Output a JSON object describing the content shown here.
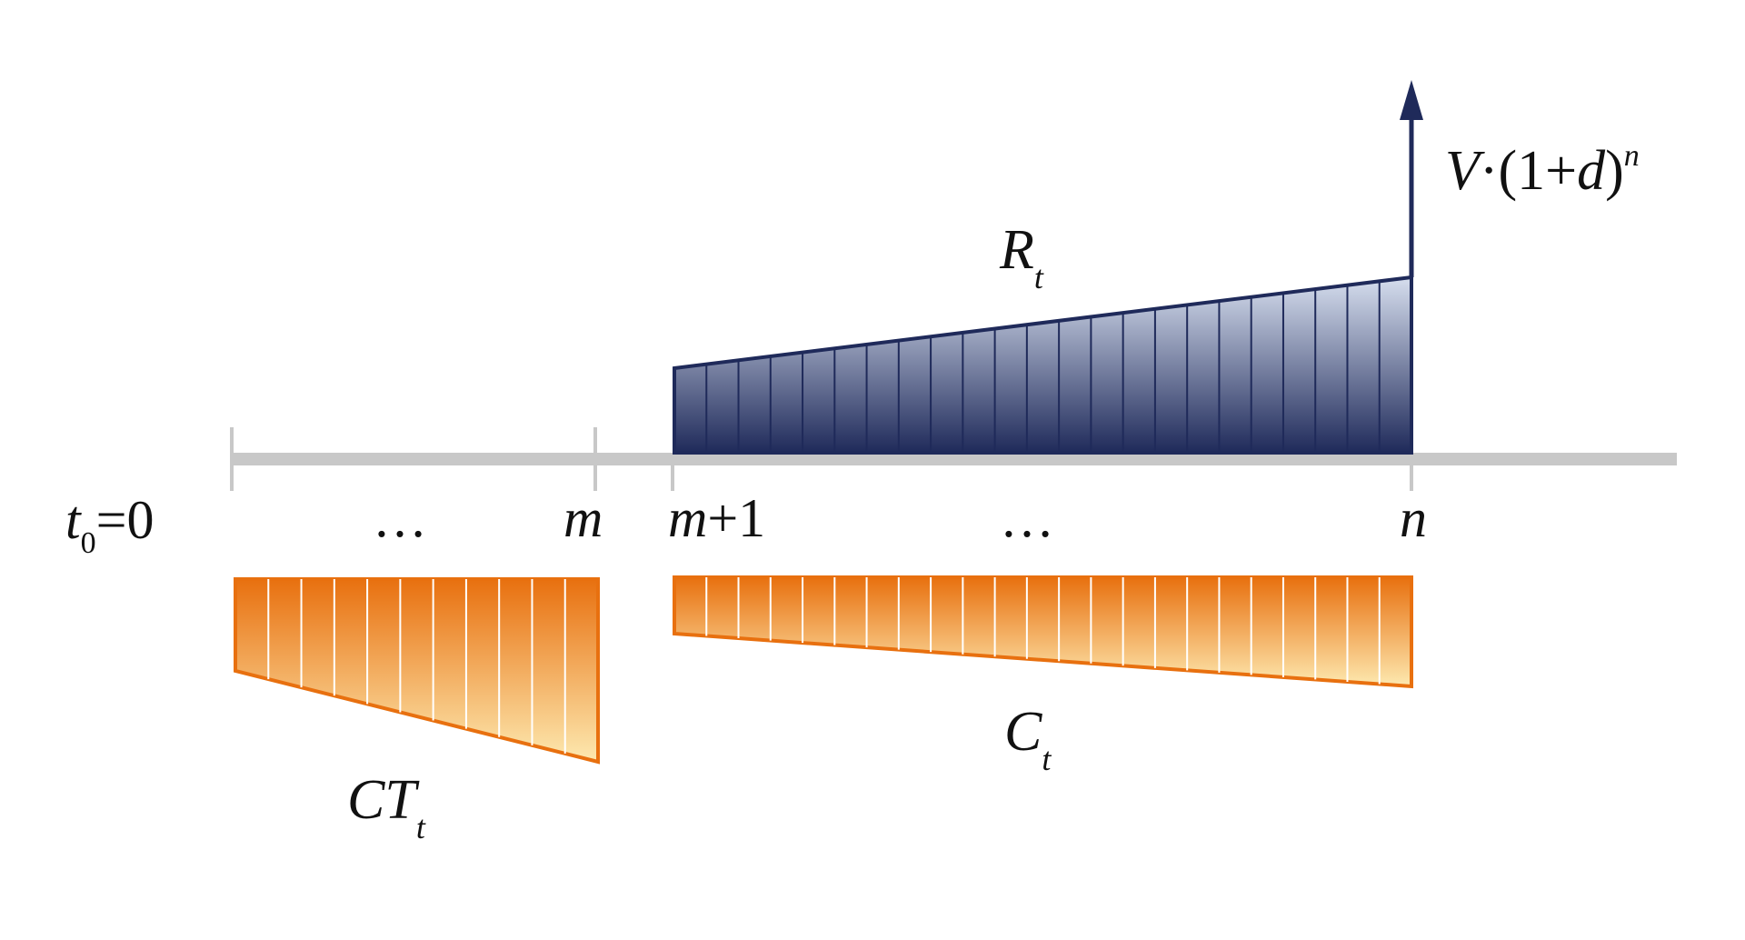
{
  "colors": {
    "axis": "#c8c8c8",
    "revenue_stroke": "#1f2a5a",
    "revenue_top": "#d6deee",
    "revenue_bottom": "#1f2a5a",
    "cost_stroke": "#e8700f",
    "cost_top": "#e8700f",
    "cost_bottom": "#fde9b0",
    "text": "#111111"
  },
  "axis": {
    "t0": "t",
    "t0_sub": "0",
    "t0_eq": "=0",
    "dots_left": "…",
    "m": "m",
    "m_plus": "m",
    "plus_one": "+1",
    "dots_right": "…",
    "n": "n"
  },
  "labels": {
    "revenue": "R",
    "revenue_sub": "t",
    "terminal_V": "V",
    "terminal_rest": "·(1+",
    "terminal_d": "d",
    "terminal_close": ")",
    "terminal_exp": "n",
    "cost": "C",
    "cost_sub": "t",
    "construction_cost": "CT",
    "construction_cost_sub": "t"
  }
}
